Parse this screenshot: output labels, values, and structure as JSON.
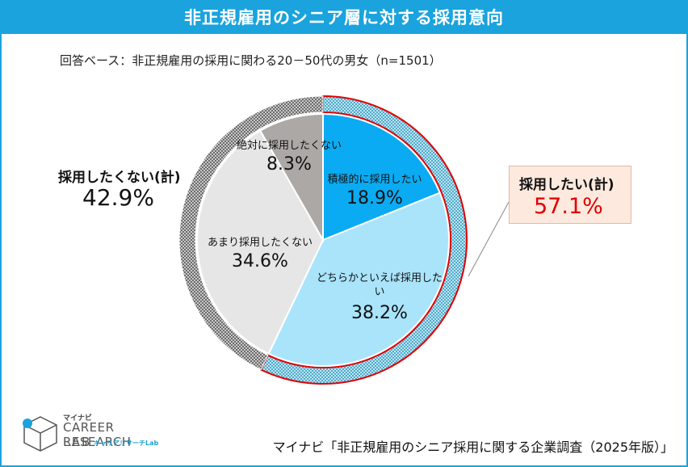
{
  "title": "非正規雇用のシニア層に対する採用意向",
  "subtitle": "回答ベース：非正規雇用の採用に関わる20－50代の男女（n=1501）",
  "summary_negative": {
    "label": "採用したくない(計)",
    "value": "42.9%"
  },
  "summary_positive": {
    "label": "採用したい(計)",
    "value": "57.1%"
  },
  "source": "マイナビ「非正規雇用のシニア採用に関する企業調査（2025年版）」",
  "logo": {
    "small": "マイナビ",
    "line1": "CAREER RESEARCH",
    "line2": "LAB",
    "sub": "キャリアリサーチLab"
  },
  "colors": {
    "accent": "#1aa3dd",
    "very_positive": "#0aabf2",
    "somewhat_positive": "#a9e4fb",
    "somewhat_negative": "#e6e6e6",
    "very_negative": "#aca8a5",
    "outer_positive": "#5fb7d6",
    "outer_negative": "#7d7d7d",
    "highlight": "#e00000"
  },
  "chart_data": {
    "type": "pie",
    "title": "非正規雇用のシニア層に対する採用意向",
    "slices": [
      {
        "label": "積極的に採用したい",
        "value": 18.9,
        "display": "18.9%"
      },
      {
        "label": "どちらかといえば採用したい",
        "value": 38.2,
        "display": "38.2%"
      },
      {
        "label": "あまり採用したくない",
        "value": 34.6,
        "display": "34.6%"
      },
      {
        "label": "絶対に採用したくない",
        "value": 8.3,
        "display": "8.3%"
      }
    ],
    "groups": [
      {
        "label": "採用したい(計)",
        "value": 57.1,
        "display": "57.1%"
      },
      {
        "label": "採用したくない(計)",
        "value": 42.9,
        "display": "42.9%"
      }
    ]
  }
}
